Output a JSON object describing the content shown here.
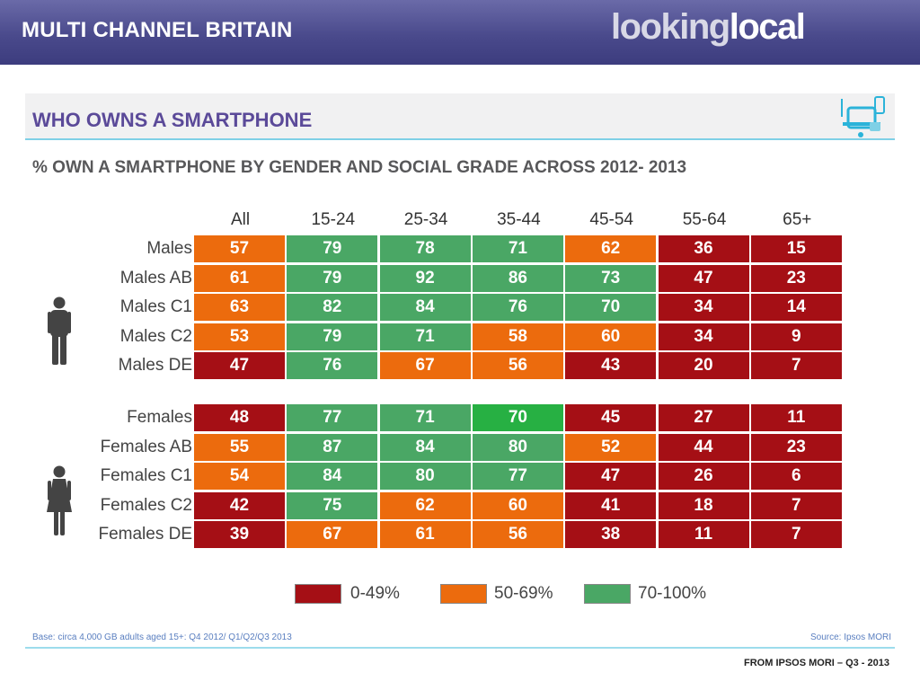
{
  "header": {
    "title": "MULTI CHANNEL BRITAIN",
    "logo_part1": "looking",
    "logo_part2": "local"
  },
  "panel": {
    "title": "WHO OWNS A SMARTPHONE",
    "subtitle": "% OWN A SMARTPHONE BY GENDER AND SOCIAL GRADE ACROSS 2012- 2013"
  },
  "footer": {
    "base_note": "Base: circa 4,000 GB adults aged 15+:  Q4 2012/ Q1/Q2/Q3 2013",
    "source_note": "Source: Ipsos MORI",
    "credit": "FROM IPSOS MORI – Q3 - 2013"
  },
  "colors": {
    "low": "#a50f15",
    "mid": "#ec6b0d",
    "high": "#4aa765",
    "high_alt": "#27b043",
    "header_bg": "#4a4a8c"
  },
  "icons": {
    "male": "male-person-icon",
    "female": "female-person-icon",
    "device": "smartphone-tablet-icon"
  },
  "chart_data": {
    "type": "table",
    "title": "% OWN A SMARTPHONE BY GENDER AND SOCIAL GRADE ACROSS 2012- 2013",
    "columns": [
      "All",
      "15-24",
      "25-34",
      "35-44",
      "45-54",
      "55-64",
      "65+"
    ],
    "groups": [
      {
        "rows": [
          {
            "label": "Males",
            "values": [
              57,
              79,
              78,
              71,
              62,
              36,
              15
            ]
          },
          {
            "label": "Males AB",
            "values": [
              61,
              79,
              92,
              86,
              73,
              47,
              23
            ]
          },
          {
            "label": "Males C1",
            "values": [
              63,
              82,
              84,
              76,
              70,
              34,
              14
            ]
          },
          {
            "label": "Males C2",
            "values": [
              53,
              79,
              71,
              58,
              60,
              34,
              9
            ]
          },
          {
            "label": "Males DE",
            "values": [
              47,
              76,
              67,
              56,
              43,
              20,
              7
            ]
          }
        ]
      },
      {
        "rows": [
          {
            "label": "Females",
            "values": [
              48,
              77,
              71,
              70,
              45,
              27,
              11
            ]
          },
          {
            "label": "Females AB",
            "values": [
              55,
              87,
              84,
              80,
              52,
              44,
              23
            ]
          },
          {
            "label": "Females C1",
            "values": [
              54,
              84,
              80,
              77,
              47,
              26,
              6
            ]
          },
          {
            "label": "Females C2",
            "values": [
              42,
              75,
              62,
              60,
              41,
              18,
              7
            ]
          },
          {
            "label": "Females DE",
            "values": [
              39,
              67,
              61,
              56,
              38,
              11,
              7
            ]
          }
        ]
      }
    ],
    "legend": [
      {
        "label": "0-49%",
        "color": "#a50f15"
      },
      {
        "label": "50-69%",
        "color": "#ec6b0d"
      },
      {
        "label": "70-100%",
        "color": "#4aa765"
      }
    ]
  }
}
